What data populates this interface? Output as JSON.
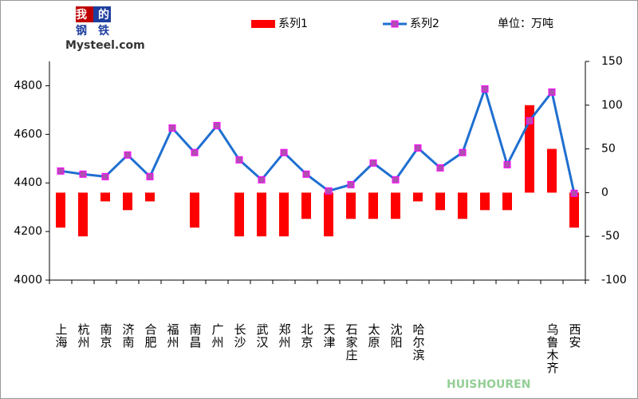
{
  "chart_data": {
    "type": "bar_line",
    "logo": [
      "我的",
      "钢铁",
      "Mysteel.com"
    ],
    "unit_label": "单位：万吨",
    "watermark": "HUISHOUREN",
    "categories": [
      "上海",
      "杭州",
      "南京",
      "济南",
      "合肥",
      "福州",
      "南昌",
      "广州",
      "长沙",
      "武汉",
      "郑州",
      "北京",
      "天津",
      "石家庄",
      "太原",
      "沈阳",
      "哈尔滨",
      null,
      null,
      null,
      null,
      null,
      "乌鲁木齐",
      "西安"
    ],
    "series": [
      {
        "name": "系列1",
        "type": "bar",
        "axis": "y2",
        "color": "#ff0000",
        "values": [
          -40,
          -50,
          -10,
          -20,
          -10,
          0,
          -40,
          0,
          -50,
          -50,
          -50,
          -30,
          -50,
          -30,
          -30,
          -30,
          -10,
          -20,
          -30,
          -20,
          -20,
          100,
          50,
          -40
        ]
      },
      {
        "name": "系列2",
        "type": "line",
        "axis": "y",
        "color": "#1f6fd0",
        "marker_color": "#b04fb0",
        "values": [
          4449,
          4436,
          4426,
          4515,
          4426,
          4626,
          4525,
          4636,
          4495,
          4413,
          4525,
          4436,
          4367,
          4393,
          4482,
          4413,
          4544,
          4462,
          4525,
          4787,
          4475,
          4656,
          4774,
          4357
        ]
      }
    ],
    "ylim": [
      4000,
      4900
    ],
    "yticks": [
      4000,
      4200,
      4400,
      4600,
      4800
    ],
    "y2lim": [
      -100,
      150
    ],
    "y2ticks": [
      -100,
      -50,
      0,
      50,
      100,
      150
    ],
    "grid": false
  }
}
